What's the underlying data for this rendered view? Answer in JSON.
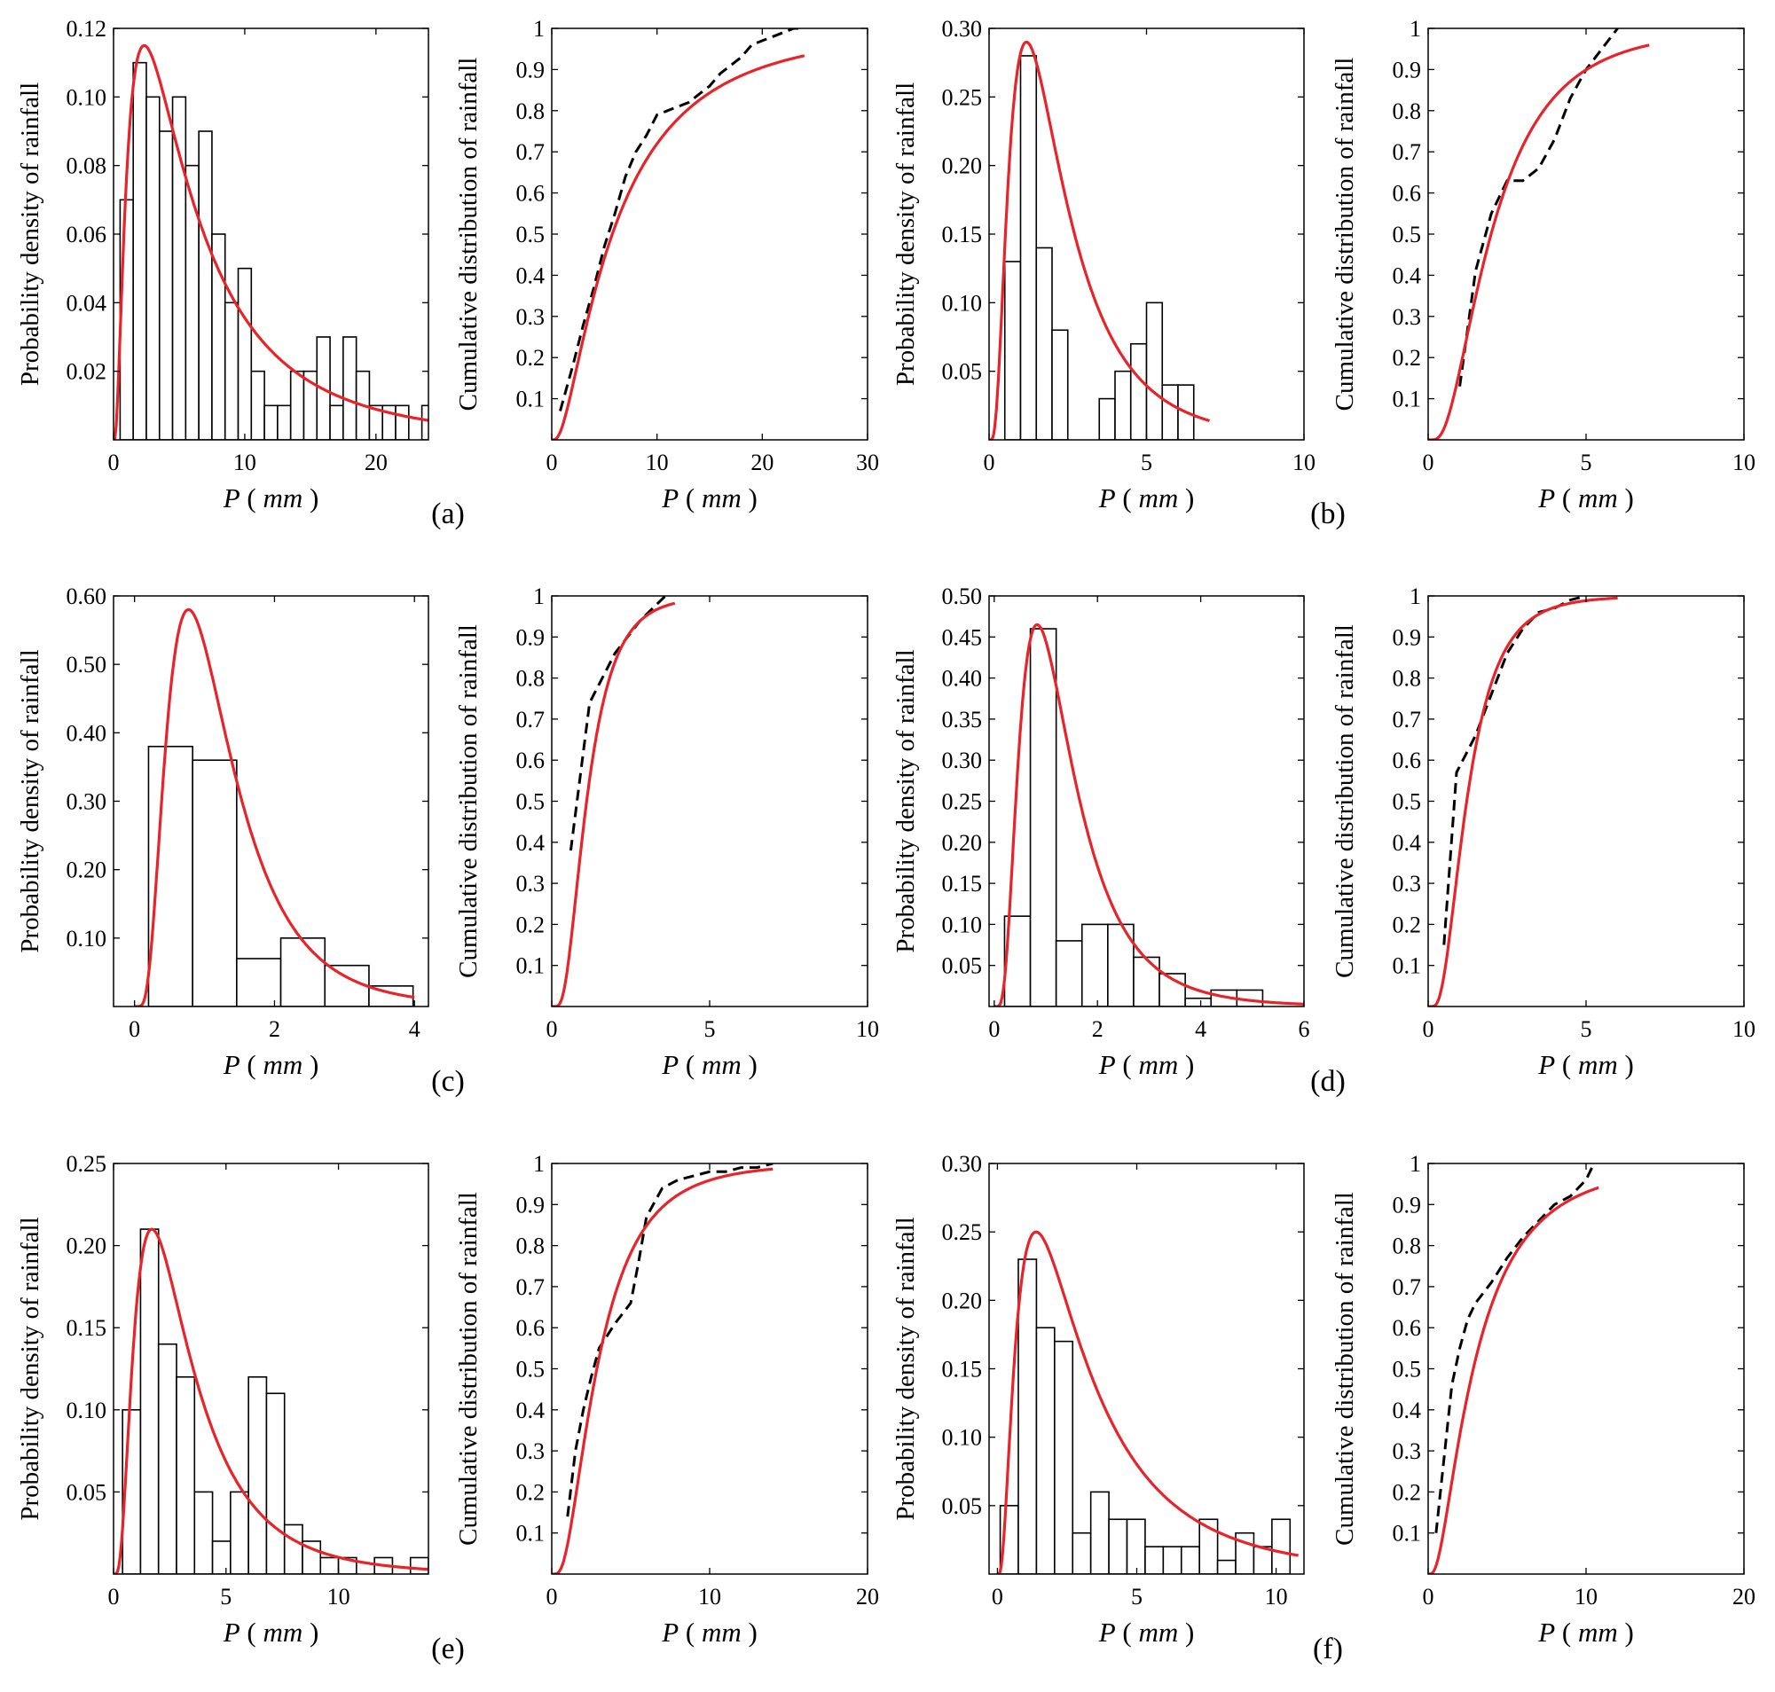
{
  "chart_data": [
    {
      "type": "bar",
      "panel": "(a)",
      "kind": "pdf",
      "title": "",
      "xlabel_var": "P",
      "xlabel_unit": "mm",
      "ylabel": "Probability density of rainfall",
      "xlim": [
        0,
        24
      ],
      "ylim": [
        0,
        0.12
      ],
      "xticks": [
        0,
        10,
        20
      ],
      "xtick_labels": [
        "0",
        "10",
        "20"
      ],
      "yticks": [
        0.02,
        0.04,
        0.06,
        0.08,
        0.1,
        0.12
      ],
      "ytick_labels": [
        "0.02",
        "0.04",
        "0.06",
        "0.08",
        "0.10",
        "0.12"
      ],
      "bins": {
        "start": 0.5,
        "width": 1,
        "values": [
          0.07,
          0.11,
          0.1,
          0.09,
          0.1,
          0.08,
          0.09,
          0.06,
          0.04,
          0.05,
          0.02,
          0.01,
          0.01,
          0.02,
          0.02,
          0.03,
          0.01,
          0.03,
          0.02,
          0.01,
          0.01,
          0.01,
          0,
          0.01
        ]
      },
      "fit": {
        "dist": "lognormal",
        "mu": 1.75,
        "sigma": 0.95,
        "xmax": 24,
        "peak": [
          2.4,
          0.115
        ]
      },
      "series": [
        {
          "name": "Histogram"
        },
        {
          "name": "Fitted PDF",
          "color": "#e8232a"
        }
      ]
    },
    {
      "type": "line",
      "panel": "(a)",
      "kind": "cdf",
      "xlabel_var": "P",
      "xlabel_unit": "mm",
      "ylabel": "Cumulative distribution of rainfall",
      "xlim": [
        0,
        30
      ],
      "ylim": [
        0,
        1
      ],
      "xticks": [
        0,
        10,
        20,
        30
      ],
      "xtick_labels": [
        "0",
        "10",
        "20",
        "30"
      ],
      "yticks": [
        0.1,
        0.2,
        0.3,
        0.4,
        0.5,
        0.6,
        0.7,
        0.8,
        0.9,
        1
      ],
      "ytick_labels": [
        "0.1",
        "0.2",
        "0.3",
        "0.4",
        "0.5",
        "0.6",
        "0.7",
        "0.8",
        "0.9",
        "1"
      ],
      "fit": {
        "dist": "lognormal",
        "mu": 1.75,
        "sigma": 0.95,
        "xmax": 24
      },
      "empirical": {
        "x": [
          0.8,
          2,
          3,
          4,
          5,
          6,
          7,
          8,
          9,
          10,
          11,
          12,
          13,
          14,
          15,
          16,
          17,
          18,
          19,
          20,
          21,
          22,
          23,
          24
        ],
        "y": [
          0.07,
          0.18,
          0.28,
          0.37,
          0.47,
          0.55,
          0.64,
          0.7,
          0.74,
          0.79,
          0.8,
          0.81,
          0.82,
          0.84,
          0.86,
          0.89,
          0.91,
          0.93,
          0.96,
          0.97,
          0.98,
          0.99,
          1.0,
          1.0
        ]
      },
      "series": [
        {
          "name": "Empirical CDF",
          "color": "#000000"
        },
        {
          "name": "Fitted CDF",
          "color": "#e8232a"
        }
      ]
    },
    {
      "type": "bar",
      "panel": "(b)",
      "kind": "pdf",
      "xlabel_var": "P",
      "xlabel_unit": "mm",
      "ylabel": "Probability density of rainfall",
      "xlim": [
        0,
        10
      ],
      "ylim": [
        0,
        0.3
      ],
      "xticks": [
        0,
        5,
        10
      ],
      "xtick_labels": [
        "0",
        "5",
        "10"
      ],
      "yticks": [
        0.05,
        0.1,
        0.15,
        0.2,
        0.25,
        0.3
      ],
      "ytick_labels": [
        "0.05",
        "0.10",
        "0.15",
        "0.20",
        "0.25",
        "0.30"
      ],
      "bins": {
        "start": 0.5,
        "width": 0.5,
        "values": [
          0.13,
          0.28,
          0.14,
          0.08,
          0,
          0,
          0.03,
          0.05,
          0.07,
          0.1,
          0.04,
          0.04
        ]
      },
      "fit": {
        "dist": "lognormal",
        "mu": 0.69,
        "sigma": 0.72,
        "xmax": 7,
        "peak": [
          1.2,
          0.29
        ]
      },
      "series": [
        {
          "name": "Histogram"
        },
        {
          "name": "Fitted PDF",
          "color": "#e8232a"
        }
      ]
    },
    {
      "type": "line",
      "panel": "(b)",
      "kind": "cdf",
      "xlabel_var": "P",
      "xlabel_unit": "mm",
      "ylabel": "Cumulative distribution of rainfall",
      "xlim": [
        0,
        10
      ],
      "ylim": [
        0,
        1
      ],
      "xticks": [
        0,
        5,
        10
      ],
      "xtick_labels": [
        "0",
        "5",
        "10"
      ],
      "yticks": [
        0.1,
        0.2,
        0.3,
        0.4,
        0.5,
        0.6,
        0.7,
        0.8,
        0.9,
        1
      ],
      "ytick_labels": [
        "0.1",
        "0.2",
        "0.3",
        "0.4",
        "0.5",
        "0.6",
        "0.7",
        "0.8",
        "0.9",
        "1"
      ],
      "fit": {
        "dist": "lognormal",
        "mu": 0.69,
        "sigma": 0.72,
        "xmax": 7
      },
      "empirical": {
        "x": [
          1,
          1.5,
          2,
          2.5,
          3,
          3.5,
          4,
          4.5,
          5,
          5.5,
          6
        ],
        "y": [
          0.13,
          0.41,
          0.55,
          0.63,
          0.63,
          0.66,
          0.73,
          0.83,
          0.9,
          0.95,
          1.0
        ]
      },
      "series": [
        {
          "name": "Empirical CDF",
          "color": "#000000"
        },
        {
          "name": "Fitted CDF",
          "color": "#e8232a"
        }
      ]
    },
    {
      "type": "bar",
      "panel": "(c)",
      "kind": "pdf",
      "xlabel_var": "P",
      "xlabel_unit": "mm",
      "ylabel": "Probability density of rainfall",
      "xlim": [
        -0.3,
        4.2
      ],
      "ylim": [
        0,
        0.6
      ],
      "xticks": [
        0,
        2,
        4
      ],
      "xtick_labels": [
        "0",
        "2",
        "4"
      ],
      "yticks": [
        0.1,
        0.2,
        0.3,
        0.4,
        0.5,
        0.6
      ],
      "ytick_labels": [
        "0.10",
        "0.20",
        "0.30",
        "0.40",
        "0.50",
        "0.60"
      ],
      "bins": {
        "start": 0.2,
        "width": 0.63,
        "values": [
          0.38,
          0.36,
          0.07,
          0.1,
          0.06,
          0.03
        ]
      },
      "fit": {
        "dist": "lognormal",
        "mu": 0.1,
        "sigma": 0.6,
        "xmax": 4,
        "peak": [
          0.6,
          0.58
        ]
      },
      "series": [
        {
          "name": "Histogram"
        },
        {
          "name": "Fitted PDF",
          "color": "#e8232a"
        }
      ]
    },
    {
      "type": "line",
      "panel": "(c)",
      "kind": "cdf",
      "xlabel_var": "P",
      "xlabel_unit": "mm",
      "ylabel": "Cumulative distribution of rainfall",
      "xlim": [
        0,
        10
      ],
      "ylim": [
        0,
        1
      ],
      "xticks": [
        0,
        5,
        10
      ],
      "xtick_labels": [
        "0",
        "5",
        "10"
      ],
      "yticks": [
        0.1,
        0.2,
        0.3,
        0.4,
        0.5,
        0.6,
        0.7,
        0.8,
        0.9,
        1
      ],
      "ytick_labels": [
        "0.1",
        "0.2",
        "0.3",
        "0.4",
        "0.5",
        "0.6",
        "0.7",
        "0.8",
        "0.9",
        "1"
      ],
      "fit": {
        "dist": "lognormal",
        "mu": 0.1,
        "sigma": 0.6,
        "xmax": 3.9
      },
      "empirical": {
        "x": [
          0.6,
          1.2,
          1.6,
          2.0,
          2.4,
          2.8,
          3.2,
          3.6
        ],
        "y": [
          0.38,
          0.74,
          0.8,
          0.86,
          0.9,
          0.94,
          0.97,
          1.0
        ]
      },
      "series": [
        {
          "name": "Empirical CDF",
          "color": "#000000"
        },
        {
          "name": "Fitted CDF",
          "color": "#e8232a"
        }
      ]
    },
    {
      "type": "bar",
      "panel": "(d)",
      "kind": "pdf",
      "xlabel_var": "P",
      "xlabel_unit": "mm",
      "ylabel": "Probability density of rainfall",
      "xlim": [
        -0.1,
        6
      ],
      "ylim": [
        0,
        0.5
      ],
      "xticks": [
        0,
        2,
        4,
        6
      ],
      "xtick_labels": [
        "0",
        "2",
        "4",
        "6"
      ],
      "yticks": [
        0.05,
        0.1,
        0.15,
        0.2,
        0.25,
        0.3,
        0.35,
        0.4,
        0.45,
        0.5
      ],
      "ytick_labels": [
        "0.05",
        "0.10",
        "0.15",
        "0.20",
        "0.25",
        "0.30",
        "0.35",
        "0.40",
        "0.45",
        "0.50"
      ],
      "bins": {
        "start": 0.2,
        "width": 0.5,
        "values": [
          0.11,
          0.46,
          0.08,
          0.1,
          0.1,
          0.06,
          0.04,
          0.01,
          0.02,
          0.02
        ]
      },
      "fit": {
        "dist": "lognormal",
        "mu": 0.2,
        "sigma": 0.62,
        "xmax": 6,
        "peak": [
          0.8,
          0.465
        ]
      },
      "series": [
        {
          "name": "Histogram"
        },
        {
          "name": "Fitted PDF",
          "color": "#e8232a"
        }
      ]
    },
    {
      "type": "line",
      "panel": "(d)",
      "kind": "cdf",
      "xlabel_var": "P",
      "xlabel_unit": "mm",
      "ylabel": "Cumulative distribution of rainfall",
      "xlim": [
        0,
        10
      ],
      "ylim": [
        0,
        1
      ],
      "xticks": [
        0,
        5,
        10
      ],
      "xtick_labels": [
        "0",
        "5",
        "10"
      ],
      "yticks": [
        0.1,
        0.2,
        0.3,
        0.4,
        0.5,
        0.6,
        0.7,
        0.8,
        0.9,
        1
      ],
      "ytick_labels": [
        "0.1",
        "0.2",
        "0.3",
        "0.4",
        "0.5",
        "0.6",
        "0.7",
        "0.8",
        "0.9",
        "1"
      ],
      "fit": {
        "dist": "lognormal",
        "mu": 0.2,
        "sigma": 0.62,
        "xmax": 6
      },
      "empirical": {
        "x": [
          0.5,
          0.9,
          1.5,
          2.0,
          2.5,
          3.0,
          3.5,
          4.0,
          4.5,
          5.0
        ],
        "y": [
          0.15,
          0.57,
          0.66,
          0.76,
          0.86,
          0.92,
          0.96,
          0.97,
          0.99,
          1.0
        ]
      },
      "series": [
        {
          "name": "Empirical CDF",
          "color": "#000000"
        },
        {
          "name": "Fitted CDF",
          "color": "#e8232a"
        }
      ]
    },
    {
      "type": "bar",
      "panel": "(e)",
      "kind": "pdf",
      "xlabel_var": "P",
      "xlabel_unit": "mm",
      "ylabel": "Probability density of rainfall",
      "xlim": [
        0,
        14
      ],
      "ylim": [
        0,
        0.25
      ],
      "xticks": [
        0,
        5,
        10
      ],
      "xtick_labels": [
        "0",
        "5",
        "10"
      ],
      "yticks": [
        0.05,
        0.1,
        0.15,
        0.2,
        0.25
      ],
      "ytick_labels": [
        "0.05",
        "0.10",
        "0.15",
        "0.20",
        "0.25"
      ],
      "bins": {
        "start": 0.4,
        "width": 0.8,
        "values": [
          0.1,
          0.21,
          0.14,
          0.12,
          0.05,
          0.02,
          0.05,
          0.12,
          0.11,
          0.03,
          0.02,
          0.01,
          0.01,
          0,
          0.01,
          0,
          0.01
        ]
      },
      "fit": {
        "dist": "lognormal",
        "mu": 1.05,
        "sigma": 0.72,
        "xmax": 14,
        "peak": [
          1.7,
          0.21
        ]
      },
      "series": [
        {
          "name": "Histogram"
        },
        {
          "name": "Fitted PDF",
          "color": "#e8232a"
        }
      ]
    },
    {
      "type": "line",
      "panel": "(e)",
      "kind": "cdf",
      "xlabel_var": "P",
      "xlabel_unit": "mm",
      "ylabel": "Cumulative distribution of rainfall",
      "xlim": [
        0,
        20
      ],
      "ylim": [
        0,
        1
      ],
      "xticks": [
        0,
        10,
        20
      ],
      "xtick_labels": [
        "0",
        "10",
        "20"
      ],
      "yticks": [
        0.1,
        0.2,
        0.3,
        0.4,
        0.5,
        0.6,
        0.7,
        0.8,
        0.9,
        1
      ],
      "ytick_labels": [
        "0.1",
        "0.2",
        "0.3",
        "0.4",
        "0.5",
        "0.6",
        "0.7",
        "0.8",
        "0.9",
        "1"
      ],
      "fit": {
        "dist": "lognormal",
        "mu": 1.05,
        "sigma": 0.72,
        "xmax": 14
      },
      "empirical": {
        "x": [
          1.0,
          1.5,
          2.0,
          2.5,
          3.0,
          4.0,
          5.0,
          5.5,
          6.0,
          7.0,
          8.0,
          9.0,
          10.0,
          11.0,
          12.0,
          13.0,
          14.0
        ],
        "y": [
          0.14,
          0.3,
          0.4,
          0.48,
          0.55,
          0.61,
          0.66,
          0.76,
          0.87,
          0.94,
          0.96,
          0.97,
          0.98,
          0.98,
          0.99,
          0.99,
          1.0
        ]
      },
      "series": [
        {
          "name": "Empirical CDF",
          "color": "#000000"
        },
        {
          "name": "Fitted CDF",
          "color": "#e8232a"
        }
      ]
    },
    {
      "type": "bar",
      "panel": "(f)",
      "kind": "pdf",
      "xlabel_var": "P",
      "xlabel_unit": "mm",
      "ylabel": "Probability density of rainfall",
      "xlim": [
        -0.3,
        11
      ],
      "ylim": [
        0,
        0.3
      ],
      "xticks": [
        0,
        5,
        10
      ],
      "xtick_labels": [
        "0",
        "5",
        "10"
      ],
      "yticks": [
        0.05,
        0.1,
        0.15,
        0.2,
        0.25,
        0.3
      ],
      "ytick_labels": [
        "0.05",
        "0.10",
        "0.15",
        "0.20",
        "0.25",
        "0.30"
      ],
      "bins": {
        "start": 0.1,
        "width": 0.65,
        "values": [
          0.05,
          0.23,
          0.18,
          0.17,
          0.03,
          0.06,
          0.04,
          0.04,
          0.02,
          0.02,
          0.02,
          0.04,
          0.01,
          0.03,
          0.02,
          0.04
        ]
      },
      "fit": {
        "dist": "lognormal",
        "mu": 1.05,
        "sigma": 0.85,
        "xmax": 10.8,
        "peak": [
          0.9,
          0.25
        ]
      },
      "series": [
        {
          "name": "Histogram"
        },
        {
          "name": "Fitted PDF",
          "color": "#e8232a"
        }
      ]
    },
    {
      "type": "line",
      "panel": "(f)",
      "kind": "cdf",
      "xlabel_var": "P",
      "xlabel_unit": "mm",
      "ylabel": "Cumulative distribution of rainfall",
      "xlim": [
        0,
        20
      ],
      "ylim": [
        0,
        1
      ],
      "xticks": [
        0,
        10,
        20
      ],
      "xtick_labels": [
        "0",
        "10",
        "20"
      ],
      "yticks": [
        0.1,
        0.2,
        0.3,
        0.4,
        0.5,
        0.6,
        0.7,
        0.8,
        0.9,
        1
      ],
      "ytick_labels": [
        "0.1",
        "0.2",
        "0.3",
        "0.4",
        "0.5",
        "0.6",
        "0.7",
        "0.8",
        "0.9",
        "1"
      ],
      "fit": {
        "dist": "lognormal",
        "mu": 1.05,
        "sigma": 0.85,
        "xmax": 10.8
      },
      "empirical": {
        "x": [
          0.5,
          1.0,
          1.5,
          2.0,
          2.5,
          3.0,
          4.0,
          5.0,
          6.0,
          7.0,
          8.0,
          9.0,
          10.0,
          10.5
        ],
        "y": [
          0.1,
          0.28,
          0.46,
          0.55,
          0.62,
          0.66,
          0.71,
          0.77,
          0.82,
          0.86,
          0.9,
          0.92,
          0.96,
          1.0
        ]
      },
      "series": [
        {
          "name": "Empirical CDF",
          "color": "#000000"
        },
        {
          "name": "Fitted CDF",
          "color": "#e8232a"
        }
      ]
    }
  ]
}
